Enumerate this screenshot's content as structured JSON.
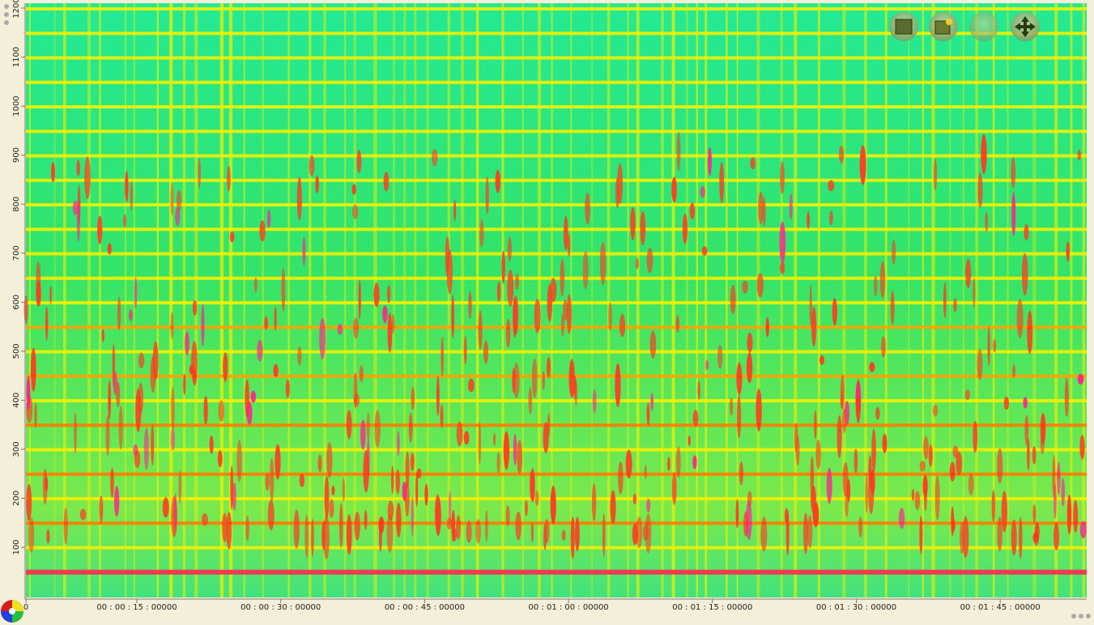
{
  "y_axis": {
    "labels": [
      100,
      200,
      300,
      400,
      500,
      600,
      700,
      800,
      900,
      1000,
      1100,
      1200
    ]
  },
  "x_axis": {
    "labels": [
      "0",
      "00 : 00 : 15 : 00000",
      "00 : 00 : 30 : 00000",
      "00 : 00 : 45 : 00000",
      "00 : 01 : 00 : 00000",
      "00 : 01 : 15 : 00000",
      "00 : 01 : 30 : 00000",
      "00 : 01 : 45 : 00000"
    ]
  }
}
